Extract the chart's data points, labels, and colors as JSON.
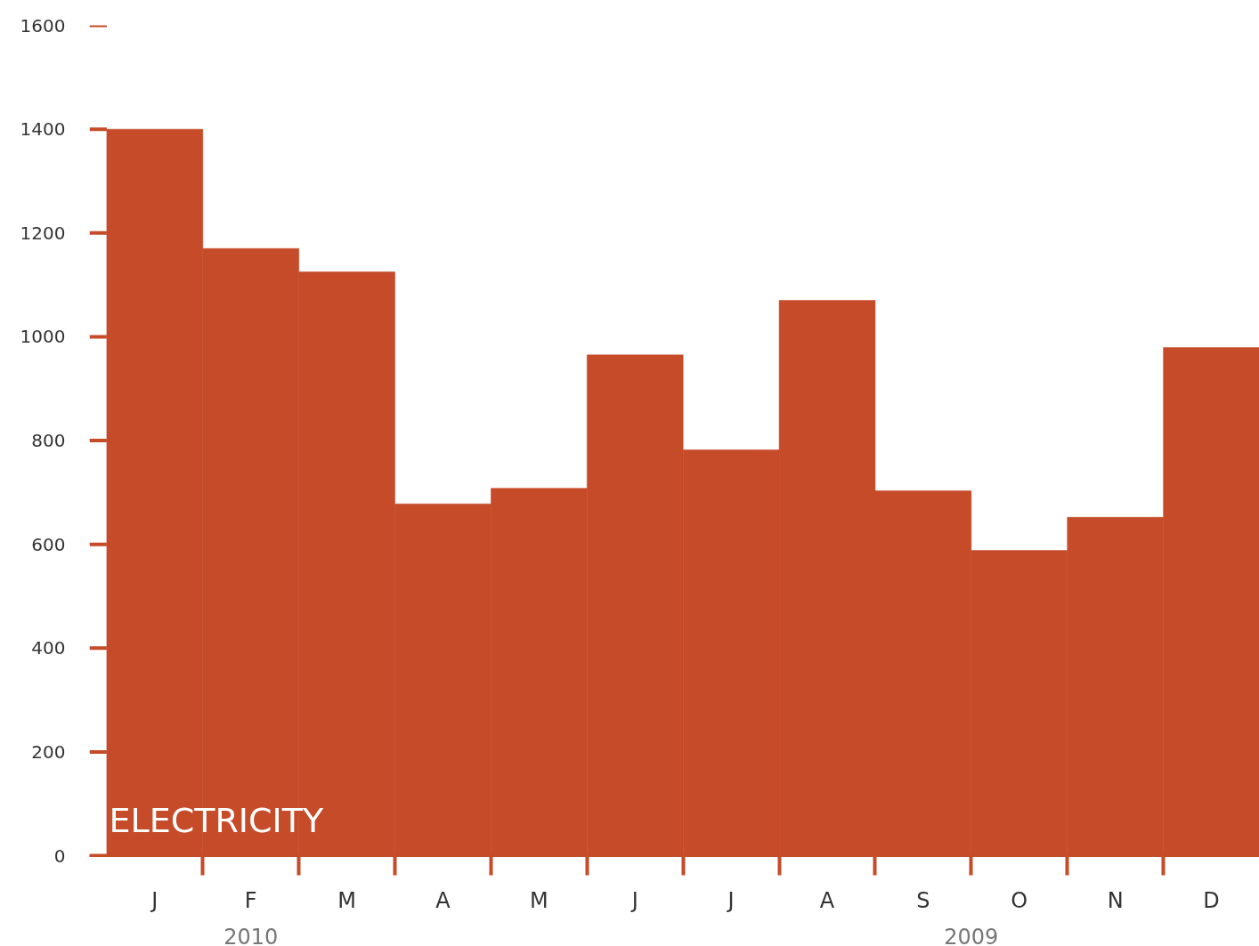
{
  "chart_data": {
    "type": "bar",
    "title": "ELECTRICITY",
    "categories": [
      "J",
      "F",
      "M",
      "A",
      "M",
      "J",
      "J",
      "A",
      "S",
      "O",
      "N",
      "D"
    ],
    "values": [
      1400,
      1170,
      1125,
      678,
      708,
      965,
      782,
      1070,
      703,
      588,
      652,
      979
    ],
    "color": "#c54b29",
    "ylim": [
      0,
      1600
    ],
    "yticks": [
      0,
      200,
      400,
      600,
      800,
      1000,
      1200,
      1400,
      1600
    ],
    "annotations": [
      "2010",
      "2009"
    ],
    "grid": false
  }
}
